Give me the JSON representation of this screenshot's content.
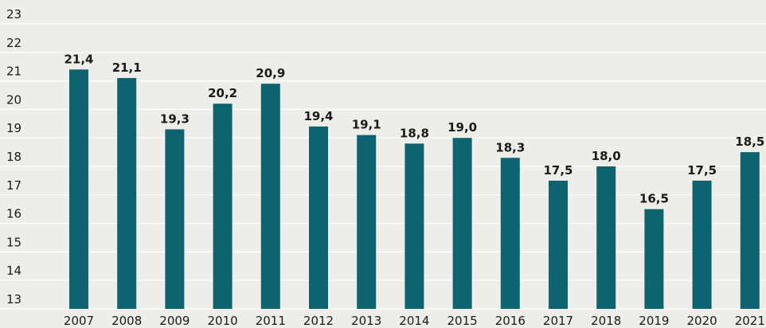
{
  "chart_data": {
    "type": "bar",
    "categories": [
      "2007",
      "2008",
      "2009",
      "2010",
      "2011",
      "2012",
      "2013",
      "2014",
      "2015",
      "2016",
      "2017",
      "2018",
      "2019",
      "2020",
      "2021"
    ],
    "values": [
      21.4,
      21.1,
      19.3,
      20.2,
      20.9,
      19.4,
      19.1,
      18.8,
      19.0,
      18.3,
      17.5,
      18.0,
      16.5,
      17.5,
      18.5
    ],
    "value_labels": [
      "21,4",
      "21,1",
      "19,3",
      "20,2",
      "20,9",
      "19,4",
      "19,1",
      "18,8",
      "19,0",
      "18,3",
      "17,5",
      "18,0",
      "16,5",
      "17,5",
      "18,5"
    ],
    "color": "#0e6370",
    "ylim": [
      13,
      23
    ],
    "yticks": [
      13,
      14,
      15,
      16,
      17,
      18,
      19,
      20,
      21,
      22,
      23
    ],
    "grid": true
  }
}
